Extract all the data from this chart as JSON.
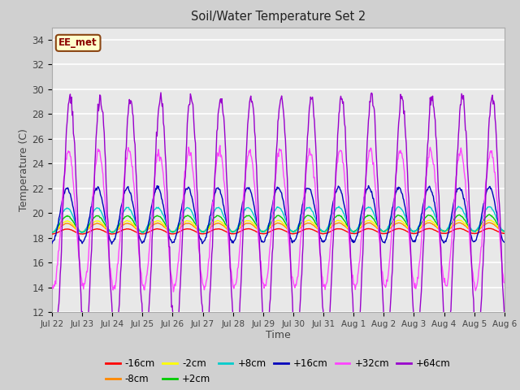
{
  "title": "Soil/Water Temperature Set 2",
  "xlabel": "Time",
  "ylabel": "Temperature (C)",
  "ylim": [
    12,
    35
  ],
  "yticks": [
    12,
    14,
    16,
    18,
    20,
    22,
    24,
    26,
    28,
    30,
    32,
    34
  ],
  "annotation_label": "EE_met",
  "annotation_bg": "#ffffcc",
  "annotation_border": "#8b4513",
  "series_order": [
    "-16cm",
    "-8cm",
    "-2cm",
    "+2cm",
    "+8cm",
    "+16cm",
    "+32cm",
    "+64cm"
  ],
  "series_colors": {
    "-16cm": "#ff0000",
    "-8cm": "#ff8800",
    "-2cm": "#ffff00",
    "+2cm": "#00cc00",
    "+8cm": "#00cccc",
    "+16cm": "#0000bb",
    "+32cm": "#ff44ff",
    "+64cm": "#9900cc"
  },
  "n_days": 15,
  "x_tick_labels": [
    "Jul 22",
    "Jul 23",
    "Jul 24",
    "Jul 25",
    "Jul 26",
    "Jul 27",
    "Jul 28",
    "Jul 29",
    "Jul 30",
    "Jul 31",
    "Aug 1",
    "Aug 2",
    "Aug 3",
    "Aug 4",
    "Aug 5",
    "Aug 6"
  ],
  "series_params": {
    "-16cm": {
      "base": 18.5,
      "amp": 0.2,
      "phase": 0.25,
      "trend": 0.003
    },
    "-8cm": {
      "base": 18.8,
      "amp": 0.35,
      "phase": 0.25,
      "trend": 0.004
    },
    "-2cm": {
      "base": 18.9,
      "amp": 0.45,
      "phase": 0.25,
      "trend": 0.005
    },
    "+2cm": {
      "base": 19.1,
      "amp": 0.65,
      "phase": 0.25,
      "trend": 0.006
    },
    "+8cm": {
      "base": 19.4,
      "amp": 1.0,
      "phase": 0.25,
      "trend": 0.007
    },
    "+16cm": {
      "base": 19.8,
      "amp": 2.2,
      "phase": 0.25,
      "trend": 0.005
    },
    "+32cm": {
      "base": 19.5,
      "amp": 5.5,
      "phase": 0.3,
      "trend": 0.002
    },
    "+64cm": {
      "base": 19.5,
      "amp": 9.8,
      "phase": 0.35,
      "trend": 0.001
    }
  }
}
